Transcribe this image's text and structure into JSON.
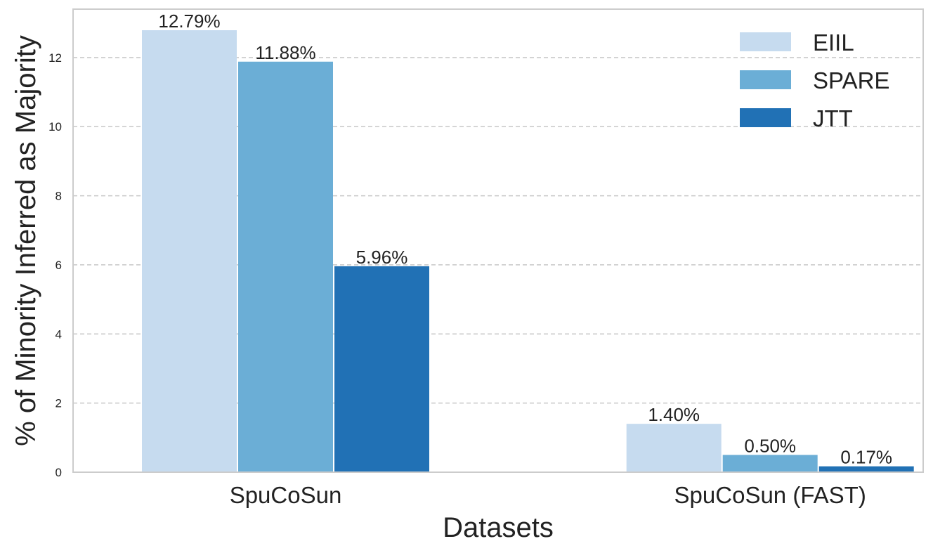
{
  "chart_data": {
    "type": "bar",
    "title": "",
    "xlabel": "Datasets",
    "ylabel": "% of Minority Inferred as Majority",
    "categories": [
      "SpuCoSun",
      "SpuCoSun (FAST)"
    ],
    "series": [
      {
        "name": "EIIL",
        "values": [
          12.79,
          1.4
        ],
        "labels": [
          "12.79%",
          "1.40%"
        ],
        "color": "#c6dbef"
      },
      {
        "name": "SPARE",
        "values": [
          11.88,
          0.5
        ],
        "labels": [
          "11.88%",
          "0.50%"
        ],
        "color": "#6baed6"
      },
      {
        "name": "JTT",
        "values": [
          5.96,
          0.17
        ],
        "labels": [
          "5.96%",
          "0.17%"
        ],
        "color": "#2171b5"
      }
    ],
    "ylim": [
      0,
      13.4
    ],
    "yticks": [
      "0",
      "2",
      "4",
      "6",
      "8",
      "10",
      "12"
    ],
    "grid": true,
    "legend_position": "top-right"
  }
}
